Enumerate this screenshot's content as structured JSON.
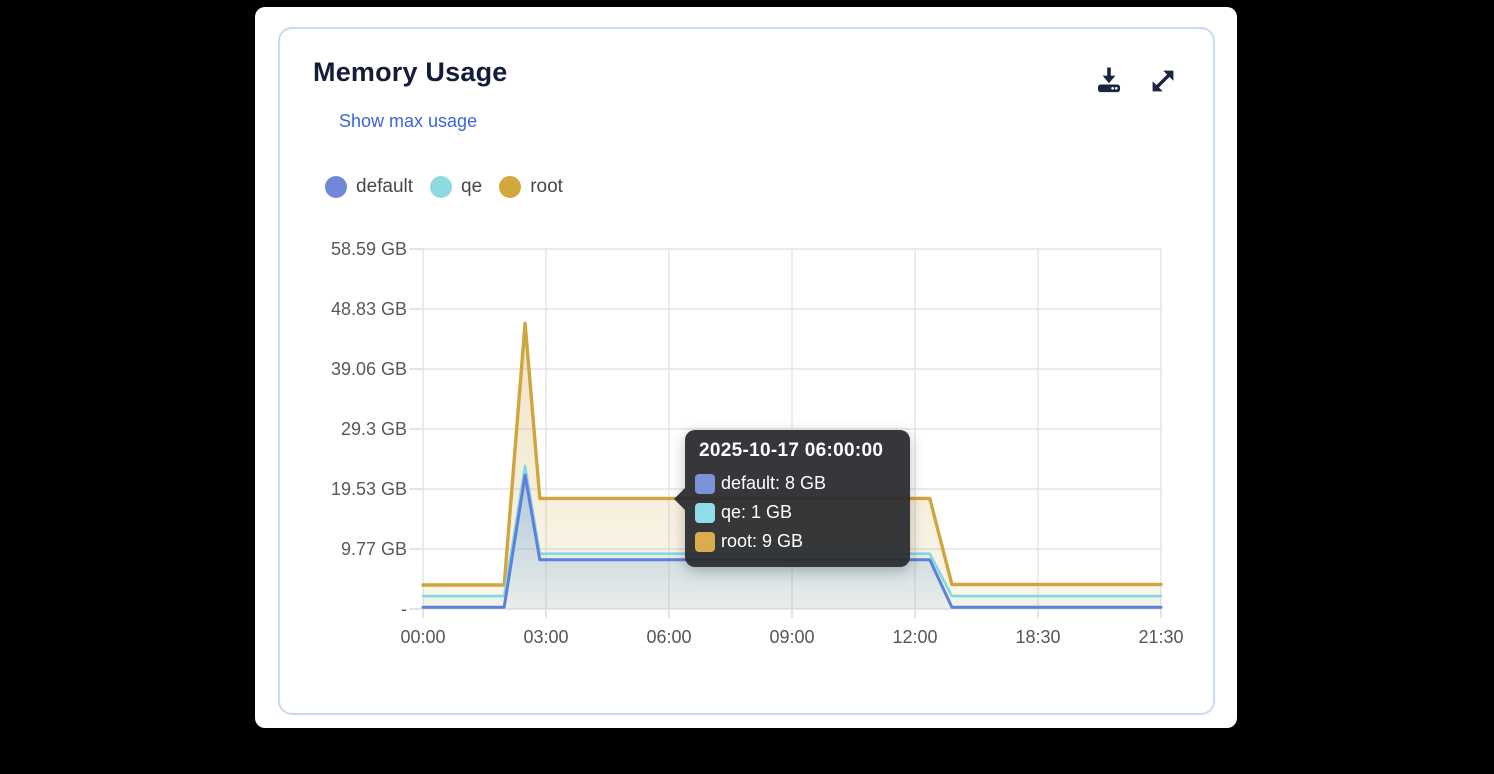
{
  "card": {
    "title": "Memory Usage",
    "link": "Show max usage"
  },
  "toolbar": {
    "download_icon": "download-icon",
    "expand_icon": "expand-icon",
    "icon_color": "#1b2540"
  },
  "legend": [
    {
      "label": "default",
      "color": "#7287d8"
    },
    {
      "label": "qe",
      "color": "#8fd9e2"
    },
    {
      "label": "root",
      "color": "#d2a83e"
    }
  ],
  "chart_data": {
    "type": "area",
    "stacked": true,
    "title": "Memory Usage",
    "unit": "GB",
    "x_tick_labels": [
      "00:00",
      "03:00",
      "06:00",
      "09:00",
      "12:00",
      "18:30",
      "21:30"
    ],
    "y_tick_labels": [
      "58.59 GB",
      "48.83 GB",
      "39.06 GB",
      "29.3 GB",
      "19.53 GB",
      "9.77 GB",
      "-"
    ],
    "y_max_gb": 58.59375,
    "grid": true,
    "legend_position": "top",
    "series": [
      {
        "name": "default",
        "line_color": "#5d80da",
        "points": [
          [
            0,
            0.3
          ],
          [
            0.66,
            0.3
          ],
          [
            0.83,
            21.8
          ],
          [
            0.95,
            8
          ],
          [
            4.12,
            8
          ],
          [
            4.3,
            0.3
          ],
          [
            6,
            0.3
          ]
        ]
      },
      {
        "name": "qe",
        "line_color": "#84d8e2",
        "points": [
          [
            0,
            1.8
          ],
          [
            0.66,
            1.8
          ],
          [
            0.83,
            1.5
          ],
          [
            0.95,
            1
          ],
          [
            4.12,
            1
          ],
          [
            4.3,
            1.8
          ],
          [
            6,
            1.8
          ]
        ]
      },
      {
        "name": "root",
        "line_color": "#d1a53d",
        "points": [
          [
            0,
            1.8
          ],
          [
            0.66,
            1.8
          ],
          [
            0.83,
            23.2
          ],
          [
            0.95,
            9
          ],
          [
            4.12,
            9
          ],
          [
            4.3,
            1.9
          ],
          [
            6,
            1.9
          ]
        ]
      }
    ],
    "values_at_tooltip_time": {
      "default": 8,
      "qe": 1,
      "root": 9
    }
  },
  "tooltip": {
    "title": "2025-10-17 06:00:00",
    "anchor_x_label": "06:00",
    "rows": [
      {
        "label": "default",
        "value": "8 GB",
        "color": "#7b93db"
      },
      {
        "label": "qe",
        "value": "1 GB",
        "color": "#8fdde8"
      },
      {
        "label": "root",
        "value": "9 GB",
        "color": "#d9ad4e"
      }
    ]
  }
}
